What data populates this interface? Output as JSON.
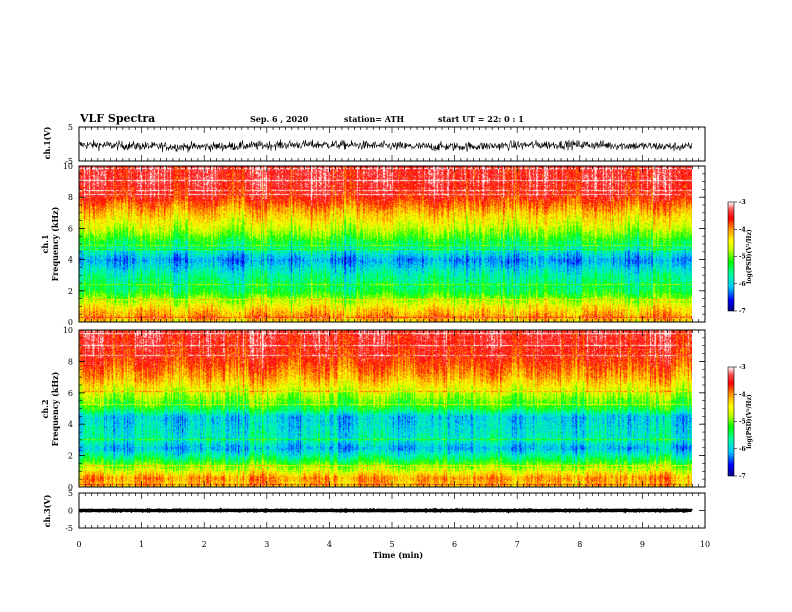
{
  "chart_data": {
    "type": "heatmap",
    "title": "VLF Spectra",
    "header": {
      "date": "Sep. 6 , 2020",
      "station": "station= ATH",
      "start_time": "start UT = 22: 0 : 1"
    },
    "xlabel": "Time (min)",
    "xlim": [
      0,
      10
    ],
    "x_ticks": [
      "0",
      "1",
      "2",
      "3",
      "4",
      "5",
      "6",
      "7",
      "8",
      "9",
      "10"
    ],
    "data_end_min": 9.8,
    "panels": [
      {
        "type": "line",
        "ylabel": "ch.1(V)",
        "ylim": [
          -5,
          5
        ],
        "y_ticks": [
          "5",
          "-5"
        ],
        "description_values": {
          "mean": -0.5,
          "amplitude": 1.6
        }
      },
      {
        "type": "heatmap",
        "ylabel_top": "ch.1",
        "ylabel": "Frequency (kHz)",
        "ylim": [
          0,
          10
        ],
        "y_ticks": [
          "0",
          "2",
          "4",
          "6",
          "8",
          "10"
        ],
        "profile": [
          [
            0,
            -4.3
          ],
          [
            0.4,
            -4.0
          ],
          [
            1,
            -4.4
          ],
          [
            2,
            -5.3
          ],
          [
            3,
            -5.6
          ],
          [
            4,
            -6.2
          ],
          [
            5,
            -5.4
          ],
          [
            6,
            -4.7
          ],
          [
            7,
            -4.2
          ],
          [
            8,
            -3.6
          ],
          [
            9,
            -3.4
          ],
          [
            10,
            -3.4
          ]
        ]
      },
      {
        "type": "heatmap",
        "ylabel_top": "ch.2",
        "ylabel": "Frequency (kHz)",
        "ylim": [
          0,
          10
        ],
        "y_ticks": [
          "0",
          "2",
          "4",
          "6",
          "8",
          "10"
        ],
        "profile": [
          [
            0,
            -4.3
          ],
          [
            0.6,
            -4.0
          ],
          [
            1,
            -4.5
          ],
          [
            2,
            -5.6
          ],
          [
            2.5,
            -6.1
          ],
          [
            3,
            -5.7
          ],
          [
            4,
            -5.9
          ],
          [
            4.5,
            -6.0
          ],
          [
            5,
            -5.3
          ],
          [
            6,
            -4.7
          ],
          [
            7,
            -4.1
          ],
          [
            8,
            -3.7
          ],
          [
            9,
            -3.5
          ],
          [
            10,
            -3.4
          ]
        ]
      },
      {
        "type": "line",
        "ylabel": "ch.3(V)",
        "ylim": [
          -5,
          5
        ],
        "y_ticks": [
          "5",
          "0",
          "-5"
        ],
        "description_values": {
          "mean": 0,
          "amplitude": 0.4
        }
      }
    ],
    "colorbar": {
      "label": "log(PSD)(V²/Hz)",
      "range": [
        -7,
        -3
      ],
      "ticks": [
        "-3",
        "-4",
        "-5",
        "-6",
        "-7"
      ],
      "colormap": [
        "#000080",
        "#0000ff",
        "#00c8ff",
        "#00ffa0",
        "#00ff00",
        "#c8ff00",
        "#ffff00",
        "#ff9600",
        "#ff0000",
        "#ff3c3c",
        "#ffffff"
      ]
    }
  }
}
